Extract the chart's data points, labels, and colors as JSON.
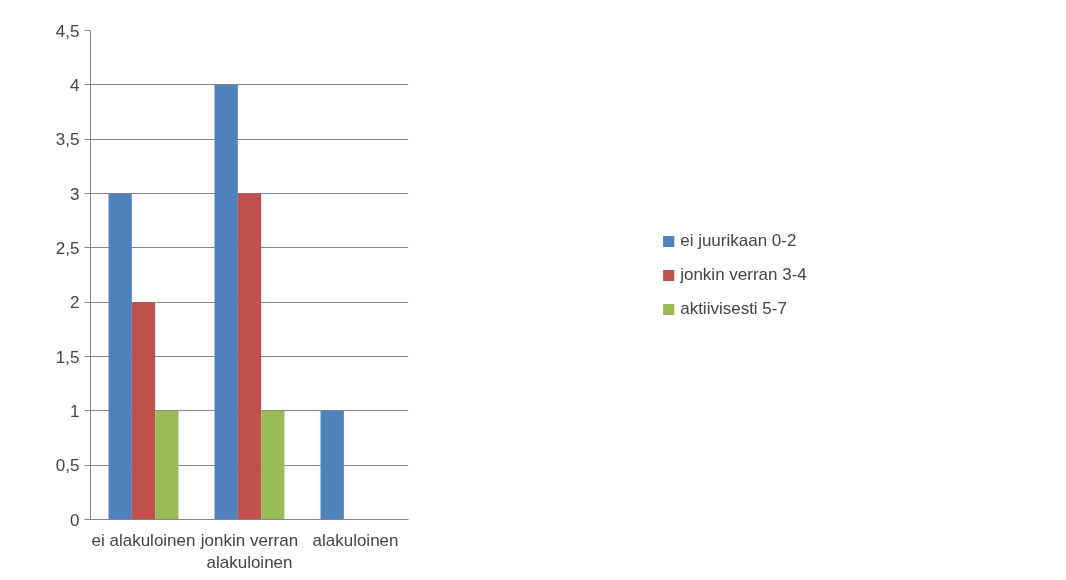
{
  "chart_data": {
    "type": "bar",
    "categories": [
      "ei alakuloinen",
      "jonkin verran alakuloinen",
      "alakuloinen"
    ],
    "series": [
      {
        "name": "ei juurikaan 0-2",
        "color": "#4f81bd",
        "values": [
          3,
          4,
          1
        ]
      },
      {
        "name": "jonkin verran 3-4",
        "color": "#c0504d",
        "values": [
          2,
          3,
          0
        ]
      },
      {
        "name": "aktiivisesti 5-7",
        "color": "#9bbb59",
        "values": [
          1,
          1,
          0
        ]
      }
    ],
    "ylim": [
      0,
      4.5
    ],
    "yticks": [
      0,
      {
        "value": 0.5,
        "label": "0,5"
      },
      1,
      {
        "value": 1.5,
        "label": "1,5"
      },
      2,
      {
        "value": 2.5,
        "label": "2,5"
      },
      3,
      {
        "value": 3.5,
        "label": "3,5"
      },
      4,
      {
        "value": 4.5,
        "label": "4,5"
      }
    ],
    "grid": "y",
    "legend": "right"
  }
}
